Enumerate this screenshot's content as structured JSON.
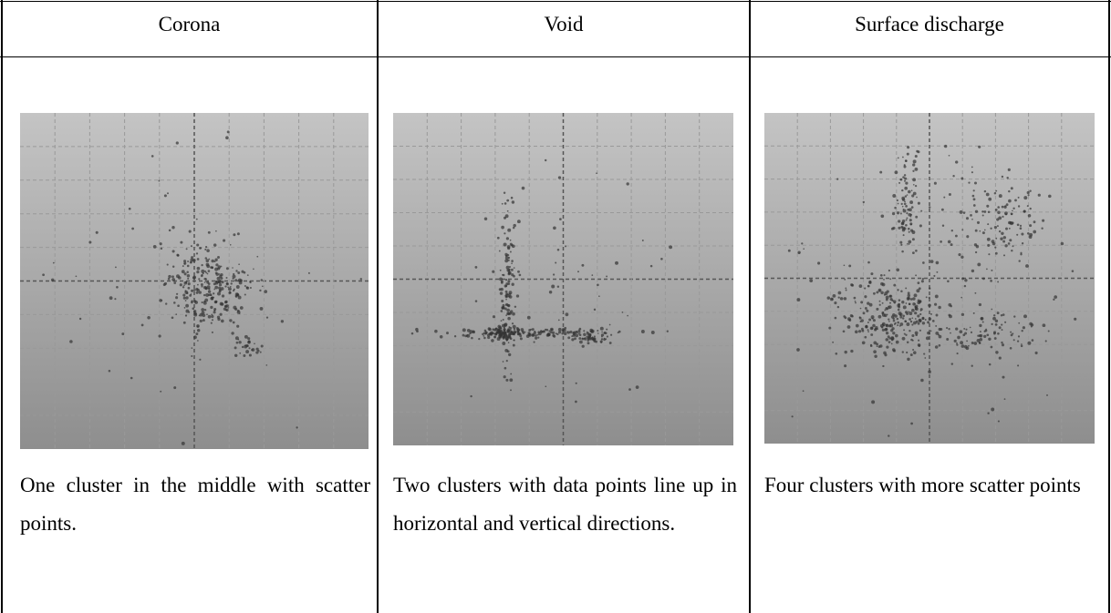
{
  "table": {
    "headers": [
      "Corona",
      "Void",
      "Surface discharge"
    ],
    "rows": [
      [
        "One cluster in the middle with scatter points.",
        "Two clusters with data points line up in horizontal and vertical directions.",
        "Four clusters with more scatter points"
      ]
    ]
  }
}
